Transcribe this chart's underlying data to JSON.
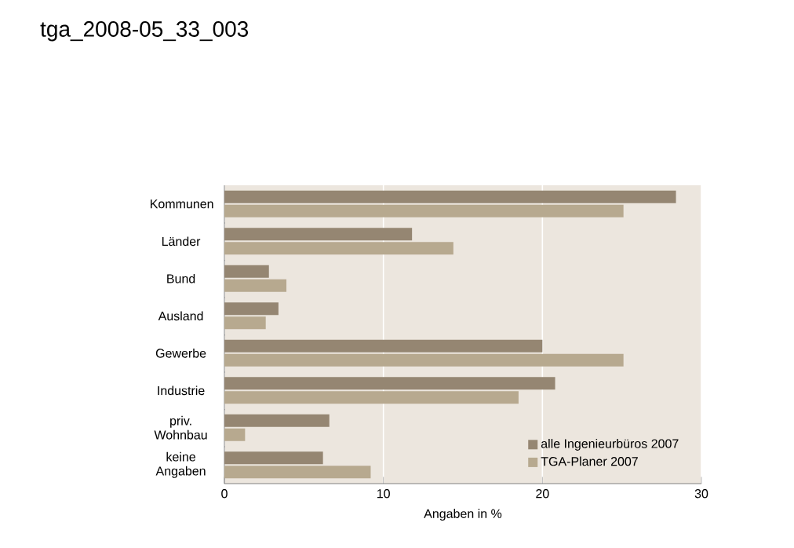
{
  "chart_data": {
    "type": "bar",
    "orientation": "horizontal",
    "title": "tga_2008-05_33_003",
    "xlabel": "Angaben in %",
    "categories": [
      "Kommunen",
      "Länder",
      "Bund",
      "Ausland",
      "Gewerbe",
      "Industrie",
      "priv. Wohnbau",
      "keine Angaben"
    ],
    "series": [
      {
        "name": "alle Ingenieurbüros 2007",
        "color": "#958672",
        "values": [
          28.4,
          11.8,
          2.8,
          3.4,
          20.0,
          20.8,
          6.6,
          6.2
        ]
      },
      {
        "name": "TGA-Planer 2007",
        "color": "#b7a98f",
        "values": [
          25.1,
          14.4,
          3.9,
          2.6,
          25.1,
          18.5,
          1.3,
          9.2
        ]
      }
    ],
    "xlim": [
      0,
      30
    ],
    "xticks": [
      0,
      10,
      20,
      30
    ],
    "grid": "x",
    "legend": "bottom right"
  }
}
